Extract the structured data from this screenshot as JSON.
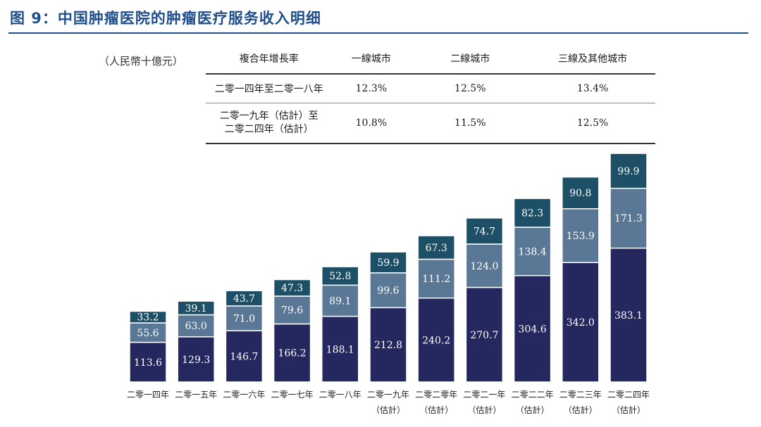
{
  "figure": {
    "title": "图 9：中国肿瘤医院的肿瘤医疗服务收入明细",
    "unit": "（人民幣十億元）"
  },
  "cagr_table": {
    "headers": [
      "複合年增長率",
      "一線城市",
      "二線城市",
      "三線及其他城市"
    ],
    "rows": [
      {
        "period": [
          "二零一四年至二零一八年"
        ],
        "values": [
          "12.3%",
          "12.5%",
          "13.4%"
        ]
      },
      {
        "period": [
          "二零一九年（估計）至",
          "二零二四年（估計）"
        ],
        "values": [
          "10.8%",
          "11.5%",
          "12.5%"
        ]
      }
    ]
  },
  "colors": {
    "title": "#1f4e8c",
    "tier1": "#24285e",
    "tier2": "#5a7896",
    "tier3": "#1d4f66"
  },
  "chart_data": {
    "type": "bar",
    "stacked": true,
    "categories": [
      [
        "二零一四年"
      ],
      [
        "二零一五年"
      ],
      [
        "二零一六年"
      ],
      [
        "二零一七年"
      ],
      [
        "二零一八年"
      ],
      [
        "二零一九年",
        "（估計）"
      ],
      [
        "二零二零年",
        "（估計）"
      ],
      [
        "二零二一年",
        "（估計）"
      ],
      [
        "二零二二年",
        "（估計）"
      ],
      [
        "二零二三年",
        "（估計）"
      ],
      [
        "二零二四年",
        "（估計）"
      ]
    ],
    "series": [
      {
        "values": [
          113.6,
          129.3,
          146.7,
          166.2,
          188.1,
          212.8,
          240.2,
          270.7,
          304.6,
          342.0,
          383.1
        ]
      },
      {
        "values": [
          55.6,
          63.0,
          71.0,
          79.6,
          89.1,
          99.6,
          111.2,
          124.0,
          138.4,
          153.9,
          171.3
        ]
      },
      {
        "values": [
          33.2,
          39.1,
          43.7,
          47.3,
          52.8,
          59.9,
          67.3,
          74.7,
          82.3,
          90.8,
          99.9
        ]
      }
    ],
    "xlabel": "",
    "ylabel": "",
    "legend": "none",
    "grid": false
  }
}
